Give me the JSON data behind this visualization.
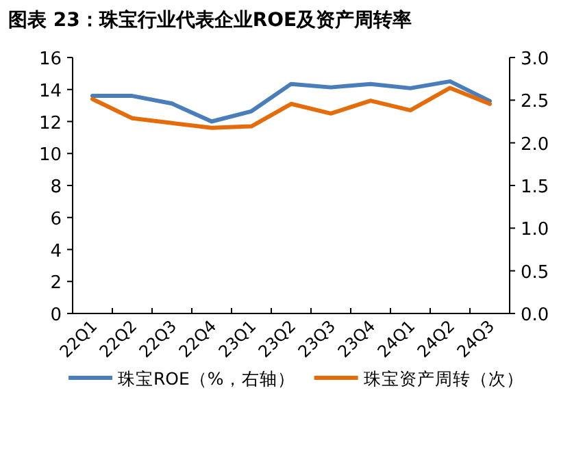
{
  "chart_data": {
    "type": "line",
    "title": "图表 23：珠宝行业代表企业ROE及资产周转率",
    "categories": [
      "22Q1",
      "22Q2",
      "22Q3",
      "22Q4",
      "23Q1",
      "23Q2",
      "23Q3",
      "23Q4",
      "24Q1",
      "24Q2",
      "24Q3"
    ],
    "series": [
      {
        "name": "珠宝ROE（%，右轴）",
        "color": "#4a7ebb",
        "axis": "y2",
        "values": [
          2.55,
          2.55,
          2.46,
          2.25,
          2.37,
          2.69,
          2.65,
          2.69,
          2.64,
          2.72,
          2.49
        ]
      },
      {
        "name": "珠宝资产周转（次）",
        "color": "#e46c0a",
        "values": [
          13.4,
          12.2,
          11.9,
          11.6,
          11.7,
          13.1,
          12.5,
          13.3,
          12.7,
          14.1,
          13.1
        ]
      }
    ],
    "ylim": [
      0,
      16
    ],
    "yticks": [
      0,
      2,
      4,
      6,
      8,
      10,
      12,
      14,
      16
    ],
    "y2lim": [
      0,
      3
    ],
    "y2ticks": [
      {
        "value": 0,
        "label": "0.0"
      },
      {
        "value": 0.5,
        "label": "0.5"
      },
      {
        "value": 1,
        "label": "1.0"
      },
      {
        "value": 1.5,
        "label": "1.5"
      },
      {
        "value": 2,
        "label": "2.0"
      },
      {
        "value": 2.5,
        "label": "2.5"
      },
      {
        "value": 3,
        "label": "3.0"
      }
    ],
    "legend": "bottom",
    "line_style": "solid",
    "marker": "none"
  }
}
